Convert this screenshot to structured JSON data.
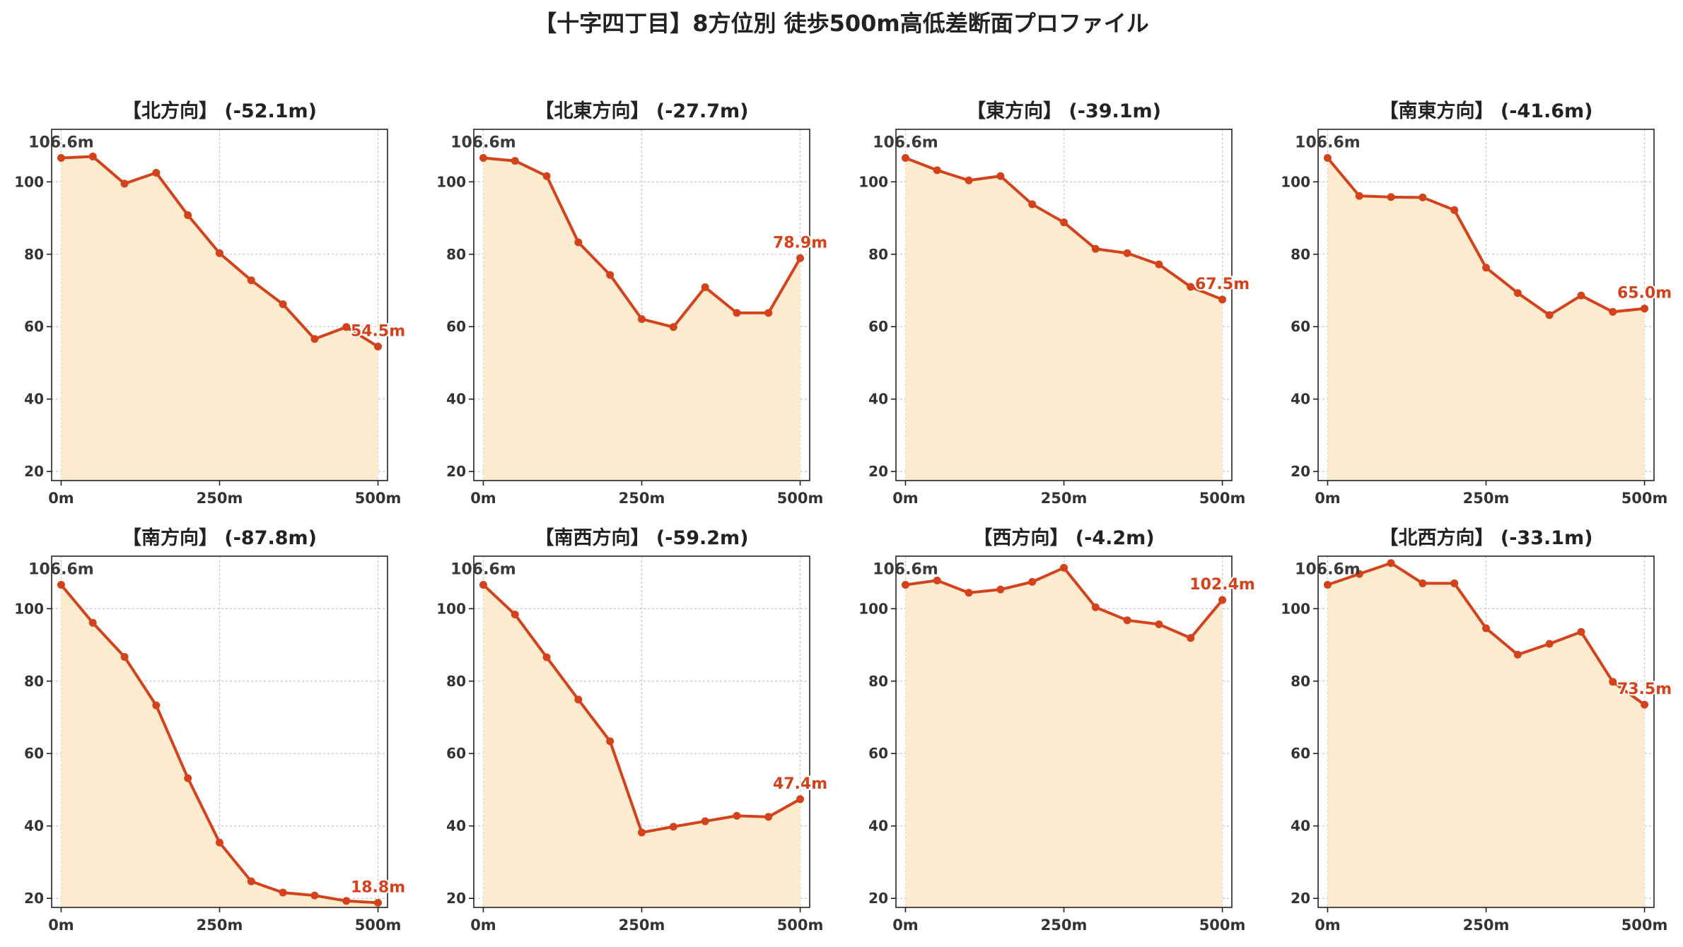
{
  "suptitle": "【十字四丁目】8方位別 徒歩500m高低差断面プロファイル",
  "colors": {
    "line": "#d4421b",
    "fill": "#fdebd0",
    "start_label": "#3a3a3a",
    "end_label": "#d4421b"
  },
  "chart_data": [
    {
      "type": "area",
      "title": "【北方向】 (-52.1m)",
      "x": [
        0,
        50,
        100,
        150,
        200,
        250,
        300,
        350,
        400,
        450,
        500
      ],
      "y": [
        106.6,
        107.0,
        99.5,
        102.5,
        90.8,
        80.3,
        72.8,
        66.2,
        56.6,
        59.9,
        54.5
      ],
      "xticks": [
        "0m",
        "250m",
        "500m"
      ],
      "xtick_values": [
        0,
        250,
        500
      ],
      "yticks": [
        20,
        40,
        60,
        80,
        100
      ],
      "ylim": [
        17.5,
        114.5
      ],
      "xlim": [
        -15,
        515
      ],
      "start_label": "106.6m",
      "end_label": "54.5m",
      "grid": true
    },
    {
      "type": "area",
      "title": "【北東方向】 (-27.7m)",
      "x": [
        0,
        50,
        100,
        150,
        200,
        250,
        300,
        350,
        400,
        450,
        500
      ],
      "y": [
        106.6,
        105.8,
        101.6,
        83.3,
        74.3,
        62.1,
        59.9,
        70.9,
        63.8,
        63.8,
        78.9
      ],
      "xticks": [
        "0m",
        "250m",
        "500m"
      ],
      "xtick_values": [
        0,
        250,
        500
      ],
      "yticks": [
        20,
        40,
        60,
        80,
        100
      ],
      "ylim": [
        17.5,
        114.5
      ],
      "xlim": [
        -15,
        515
      ],
      "start_label": "106.6m",
      "end_label": "78.9m",
      "grid": true
    },
    {
      "type": "area",
      "title": "【東方向】 (-39.1m)",
      "x": [
        0,
        50,
        100,
        150,
        200,
        250,
        300,
        350,
        400,
        450,
        500
      ],
      "y": [
        106.6,
        103.2,
        100.4,
        101.6,
        93.8,
        88.8,
        81.5,
        80.3,
        77.2,
        71.0,
        67.5
      ],
      "xticks": [
        "0m",
        "250m",
        "500m"
      ],
      "xtick_values": [
        0,
        250,
        500
      ],
      "yticks": [
        20,
        40,
        60,
        80,
        100
      ],
      "ylim": [
        17.5,
        114.5
      ],
      "xlim": [
        -15,
        515
      ],
      "start_label": "106.6m",
      "end_label": "67.5m",
      "grid": true
    },
    {
      "type": "area",
      "title": "【南東方向】 (-41.6m)",
      "x": [
        0,
        50,
        100,
        150,
        200,
        250,
        300,
        350,
        400,
        450,
        500
      ],
      "y": [
        106.6,
        96.1,
        95.8,
        95.7,
        92.2,
        76.3,
        69.3,
        63.2,
        68.6,
        64.1,
        65.0
      ],
      "xticks": [
        "0m",
        "250m",
        "500m"
      ],
      "xtick_values": [
        0,
        250,
        500
      ],
      "yticks": [
        20,
        40,
        60,
        80,
        100
      ],
      "ylim": [
        17.5,
        114.5
      ],
      "xlim": [
        -15,
        515
      ],
      "start_label": "106.6m",
      "end_label": "65.0m",
      "grid": true
    },
    {
      "type": "area",
      "title": "【南方向】 (-87.8m)",
      "x": [
        0,
        50,
        100,
        150,
        200,
        250,
        300,
        350,
        400,
        450,
        500
      ],
      "y": [
        106.6,
        96.1,
        86.7,
        73.3,
        53.2,
        35.4,
        24.7,
        21.6,
        20.8,
        19.3,
        18.8
      ],
      "xticks": [
        "0m",
        "250m",
        "500m"
      ],
      "xtick_values": [
        0,
        250,
        500
      ],
      "yticks": [
        20,
        40,
        60,
        80,
        100
      ],
      "ylim": [
        17.5,
        114.5
      ],
      "xlim": [
        -15,
        515
      ],
      "start_label": "106.6m",
      "end_label": "18.8m",
      "grid": true
    },
    {
      "type": "area",
      "title": "【南西方向】 (-59.2m)",
      "x": [
        0,
        50,
        100,
        150,
        200,
        250,
        300,
        350,
        400,
        450,
        500
      ],
      "y": [
        106.6,
        98.4,
        86.6,
        74.9,
        63.4,
        38.2,
        39.8,
        41.3,
        42.8,
        42.5,
        47.4
      ],
      "xticks": [
        "0m",
        "250m",
        "500m"
      ],
      "xtick_values": [
        0,
        250,
        500
      ],
      "yticks": [
        20,
        40,
        60,
        80,
        100
      ],
      "ylim": [
        17.5,
        114.5
      ],
      "xlim": [
        -15,
        515
      ],
      "start_label": "106.6m",
      "end_label": "47.4m",
      "grid": true
    },
    {
      "type": "area",
      "title": "【西方向】 (-4.2m)",
      "x": [
        0,
        50,
        100,
        150,
        200,
        250,
        300,
        350,
        400,
        450,
        500
      ],
      "y": [
        106.6,
        107.8,
        104.4,
        105.3,
        107.4,
        111.3,
        100.4,
        96.8,
        95.7,
        91.9,
        102.4
      ],
      "xticks": [
        "0m",
        "250m",
        "500m"
      ],
      "xtick_values": [
        0,
        250,
        500
      ],
      "yticks": [
        20,
        40,
        60,
        80,
        100
      ],
      "ylim": [
        17.5,
        114.5
      ],
      "xlim": [
        -15,
        515
      ],
      "start_label": "106.6m",
      "end_label": "102.4m",
      "grid": true
    },
    {
      "type": "area",
      "title": "【北西方向】 (-33.1m)",
      "x": [
        0,
        50,
        100,
        150,
        200,
        250,
        300,
        350,
        400,
        450,
        500
      ],
      "y": [
        106.6,
        109.6,
        112.6,
        107.0,
        107.0,
        94.6,
        87.3,
        90.3,
        93.6,
        79.8,
        73.5
      ],
      "xticks": [
        "0m",
        "250m",
        "500m"
      ],
      "xtick_values": [
        0,
        250,
        500
      ],
      "yticks": [
        20,
        40,
        60,
        80,
        100
      ],
      "ylim": [
        17.5,
        114.5
      ],
      "xlim": [
        -15,
        515
      ],
      "start_label": "106.6m",
      "end_label": "73.5m",
      "grid": true
    }
  ]
}
